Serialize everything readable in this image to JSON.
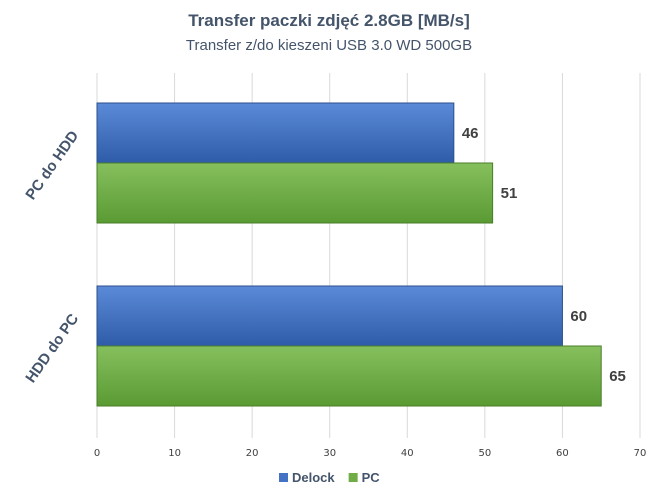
{
  "chart_data": {
    "type": "bar",
    "orientation": "horizontal",
    "title": "Transfer paczki zdjęć 2.8GB [MB/s]",
    "subtitle": "Transfer z/do kieszeni USB 3.0 WD 500GB",
    "categories": [
      "PC do HDD",
      "HDD do PC"
    ],
    "series": [
      {
        "name": "Delock",
        "values": [
          46,
          60
        ],
        "color": "#4472c4"
      },
      {
        "name": "PC",
        "values": [
          51,
          65
        ],
        "color": "#70ad47"
      }
    ],
    "xlim": [
      0,
      70
    ],
    "xticks": [
      0,
      10,
      20,
      30,
      40,
      50,
      60,
      70
    ],
    "grid": true,
    "legend_position": "bottom"
  }
}
